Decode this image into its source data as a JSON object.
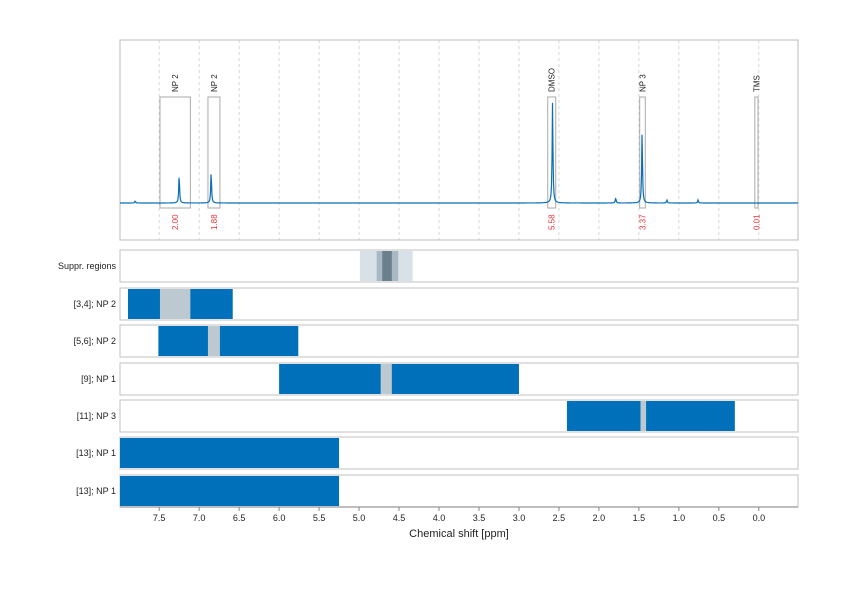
{
  "chart_data": {
    "type": "line",
    "title": "",
    "xlabel": "Chemical shift [ppm]",
    "xlim": [
      7.99,
      -0.49
    ],
    "x_ticks": [
      7.5,
      7.0,
      6.5,
      6.0,
      5.5,
      5.0,
      4.5,
      4.0,
      3.5,
      3.0,
      2.5,
      2.0,
      1.5,
      1.0,
      0.5,
      0.0
    ],
    "x_tick_labels": [
      "7.5",
      "7.0",
      "6.5",
      "6.0",
      "5.5",
      "5.0",
      "4.5",
      "4.0",
      "3.5",
      "3.0",
      "2.5",
      "2.0",
      "1.5",
      "1.0",
      "0.5",
      "0.0"
    ],
    "grid": true,
    "spectrum": {
      "color": "#0b6fb8",
      "peaks": [
        {
          "ppm": 7.8,
          "height": 0.02
        },
        {
          "ppm": 7.25,
          "height": 0.28
        },
        {
          "ppm": 6.85,
          "height": 0.31
        },
        {
          "ppm": 2.58,
          "height": 1.0
        },
        {
          "ppm": 1.79,
          "height": 0.05
        },
        {
          "ppm": 1.46,
          "height": 0.7
        },
        {
          "ppm": 1.15,
          "height": 0.03
        },
        {
          "ppm": 0.76,
          "height": 0.03
        }
      ]
    },
    "annotations": [
      {
        "label": "NP 2",
        "from": 7.49,
        "to": 7.11,
        "integral": "2.00"
      },
      {
        "label": "NP 2",
        "from": 6.89,
        "to": 6.74,
        "integral": "1.88"
      },
      {
        "label": "DMSO",
        "from": 2.64,
        "to": 2.54,
        "integral": "5.58"
      },
      {
        "label": "NP 3",
        "from": 1.49,
        "to": 1.42,
        "integral": "3.37"
      },
      {
        "label": "TMS",
        "from": 0.05,
        "to": 0.01,
        "integral": "0.01"
      }
    ],
    "suppression": {
      "label": "Suppr. regions",
      "bands": [
        {
          "from": 4.99,
          "to": 4.33,
          "color": "#d9e1e8"
        },
        {
          "from": 4.78,
          "to": 4.51,
          "color": "#a9b9c4"
        },
        {
          "from": 4.71,
          "to": 4.59,
          "color": "#6c7f8c"
        }
      ]
    },
    "rows": [
      {
        "label": "[3,4]; NP 2",
        "range": [
          7.89,
          6.58
        ],
        "gap": [
          7.49,
          7.11
        ]
      },
      {
        "label": "[5,6]; NP 2",
        "range": [
          7.51,
          5.76
        ],
        "gap": [
          6.89,
          6.74
        ]
      },
      {
        "label": "[9]; NP 1",
        "range": [
          6.0,
          3.0
        ],
        "gap": [
          4.73,
          4.59
        ]
      },
      {
        "label": "[11]; NP 3",
        "range": [
          2.4,
          0.3
        ],
        "gap": [
          1.48,
          1.41
        ]
      },
      {
        "label": "[13]; NP 1",
        "range": [
          7.99,
          5.25
        ],
        "gap": null
      },
      {
        "label": "[13]; NP 1",
        "range": [
          7.99,
          5.25
        ],
        "gap": null
      }
    ],
    "colors": {
      "bar": "#0070bb",
      "gap": "#bcc9d0",
      "integral": "#e8333a",
      "grid": "#cccccc"
    }
  }
}
